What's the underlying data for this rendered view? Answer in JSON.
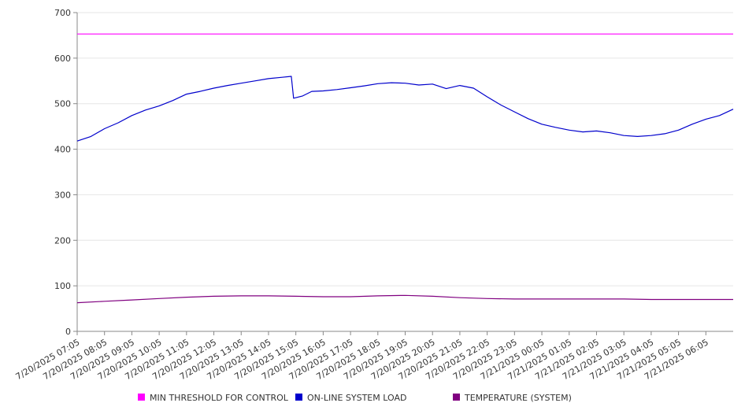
{
  "chart_data": {
    "type": "line",
    "title": "",
    "xlabel": "",
    "ylabel": "",
    "ylim": [
      0,
      700
    ],
    "yticks": [
      0,
      100,
      200,
      300,
      400,
      500,
      600,
      700
    ],
    "grid": true,
    "legend_position": "bottom",
    "x_ticks": [
      "7/20/2025 07:05",
      "7/20/2025 08:05",
      "7/20/2025 09:05",
      "7/20/2025 10:05",
      "7/20/2025 11:05",
      "7/20/2025 12:05",
      "7/20/2025 13:05",
      "7/20/2025 14:05",
      "7/20/2025 15:05",
      "7/20/2025 16:05",
      "7/20/2025 17:05",
      "7/20/2025 18:05",
      "7/20/2025 19:05",
      "7/20/2025 20:05",
      "7/20/2025 21:05",
      "7/20/2025 22:05",
      "7/20/2025 23:05",
      "7/21/2025 00:05",
      "7/21/2025 01:05",
      "7/21/2025 02:05",
      "7/21/2025 03:05",
      "7/21/2025 04:05",
      "7/21/2025 05:05",
      "7/21/2025 06:05"
    ],
    "x_end": "7/21/2025 07:05",
    "series": [
      {
        "name": "MIN THRESHOLD FOR CONTROL",
        "color": "#ff00ff",
        "points": [
          [
            "7/20/2025 07:05",
            653
          ],
          [
            "7/21/2025 07:05",
            653
          ]
        ]
      },
      {
        "name": "ON-LINE SYSTEM LOAD",
        "color": "#0000cc",
        "points": [
          [
            "7/20/2025 07:05",
            418
          ],
          [
            "7/20/2025 07:35",
            428
          ],
          [
            "7/20/2025 08:05",
            445
          ],
          [
            "7/20/2025 08:35",
            458
          ],
          [
            "7/20/2025 09:05",
            474
          ],
          [
            "7/20/2025 09:35",
            486
          ],
          [
            "7/20/2025 10:05",
            495
          ],
          [
            "7/20/2025 10:35",
            507
          ],
          [
            "7/20/2025 11:05",
            521
          ],
          [
            "7/20/2025 11:35",
            527
          ],
          [
            "7/20/2025 12:05",
            534
          ],
          [
            "7/20/2025 12:35",
            540
          ],
          [
            "7/20/2025 13:05",
            545
          ],
          [
            "7/20/2025 13:35",
            550
          ],
          [
            "7/20/2025 14:05",
            555
          ],
          [
            "7/20/2025 14:35",
            558
          ],
          [
            "7/20/2025 14:55",
            560
          ],
          [
            "7/20/2025 15:00",
            512
          ],
          [
            "7/20/2025 15:20",
            517
          ],
          [
            "7/20/2025 15:40",
            527
          ],
          [
            "7/20/2025 16:05",
            528
          ],
          [
            "7/20/2025 16:35",
            531
          ],
          [
            "7/20/2025 17:05",
            535
          ],
          [
            "7/20/2025 17:35",
            539
          ],
          [
            "7/20/2025 18:05",
            544
          ],
          [
            "7/20/2025 18:35",
            546
          ],
          [
            "7/20/2025 19:05",
            545
          ],
          [
            "7/20/2025 19:35",
            541
          ],
          [
            "7/20/2025 20:05",
            543
          ],
          [
            "7/20/2025 20:35",
            533
          ],
          [
            "7/20/2025 21:05",
            540
          ],
          [
            "7/20/2025 21:35",
            534
          ],
          [
            "7/20/2025 22:05",
            515
          ],
          [
            "7/20/2025 22:35",
            497
          ],
          [
            "7/20/2025 23:05",
            482
          ],
          [
            "7/20/2025 23:35",
            467
          ],
          [
            "7/21/2025 00:05",
            455
          ],
          [
            "7/21/2025 00:35",
            448
          ],
          [
            "7/21/2025 01:05",
            442
          ],
          [
            "7/21/2025 01:35",
            438
          ],
          [
            "7/21/2025 02:05",
            440
          ],
          [
            "7/21/2025 02:35",
            436
          ],
          [
            "7/21/2025 03:05",
            430
          ],
          [
            "7/21/2025 03:35",
            428
          ],
          [
            "7/21/2025 04:05",
            430
          ],
          [
            "7/21/2025 04:35",
            434
          ],
          [
            "7/21/2025 05:05",
            442
          ],
          [
            "7/21/2025 05:35",
            455
          ],
          [
            "7/21/2025 06:05",
            466
          ],
          [
            "7/21/2025 06:35",
            474
          ],
          [
            "7/21/2025 07:05",
            488
          ]
        ]
      },
      {
        "name": "TEMPERATURE (SYSTEM)",
        "color": "#800080",
        "points": [
          [
            "7/20/2025 07:05",
            63
          ],
          [
            "7/20/2025 08:05",
            66
          ],
          [
            "7/20/2025 09:05",
            69
          ],
          [
            "7/20/2025 10:05",
            72
          ],
          [
            "7/20/2025 11:05",
            75
          ],
          [
            "7/20/2025 12:05",
            77
          ],
          [
            "7/20/2025 13:05",
            78
          ],
          [
            "7/20/2025 14:05",
            78
          ],
          [
            "7/20/2025 15:05",
            77
          ],
          [
            "7/20/2025 16:05",
            76
          ],
          [
            "7/20/2025 17:05",
            76
          ],
          [
            "7/20/2025 18:05",
            78
          ],
          [
            "7/20/2025 19:05",
            79
          ],
          [
            "7/20/2025 20:05",
            77
          ],
          [
            "7/20/2025 21:05",
            74
          ],
          [
            "7/20/2025 22:05",
            72
          ],
          [
            "7/20/2025 23:05",
            71
          ],
          [
            "7/21/2025 00:05",
            71
          ],
          [
            "7/21/2025 01:05",
            71
          ],
          [
            "7/21/2025 02:05",
            71
          ],
          [
            "7/21/2025 03:05",
            71
          ],
          [
            "7/21/2025 04:05",
            70
          ],
          [
            "7/21/2025 05:05",
            70
          ],
          [
            "7/21/2025 06:05",
            70
          ],
          [
            "7/21/2025 07:05",
            70
          ]
        ]
      }
    ]
  }
}
